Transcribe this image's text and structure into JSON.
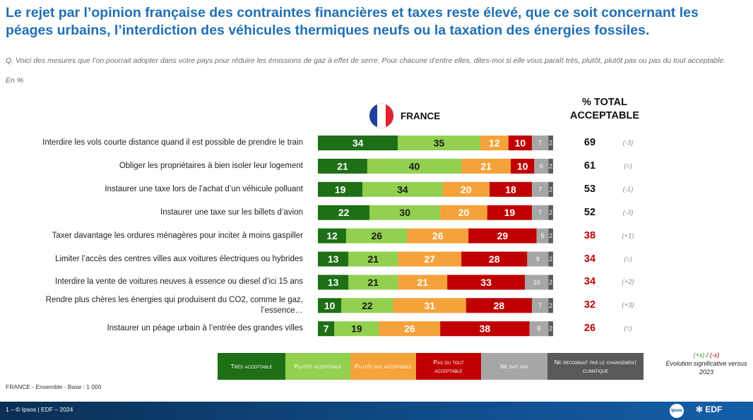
{
  "title": "Le rejet par l’opinion française des contraintes financières et taxes reste élevé, que ce soit concernant les péages urbains, l’interdiction des véhicules thermiques neufs ou la taxation des énergies fossiles.",
  "question": "Q. Voici des mesures que l’on pourrait adopter dans votre pays pour réduire les émissions de gaz à effet de serre. Pour chacune d’entre elles, dites-moi si elle vous paraît très, plutôt, plutôt pas ou pas du tout acceptable.",
  "unit": "En %",
  "country": "FRANCE",
  "total_header": "% TOTAL ACCEPTABLE",
  "colors": {
    "tres": "#1e6f16",
    "plutot": "#92d050",
    "plutot_pas": "#f4a23a",
    "pas_du_tout": "#c00000",
    "nsp": "#a6a6a6",
    "ne_reconnait": "#595959",
    "total_red": "#c00000",
    "total_black": "#111111"
  },
  "chart_data": {
    "type": "stacked-bar-horizontal",
    "title": "FRANCE",
    "series_names": [
      "Très acceptable",
      "Plutôt acceptable",
      "Plutôt pas acceptable",
      "Pas du tout acceptable",
      "Ne sait pas",
      "Ne reconnait pas le changement climatique"
    ],
    "rows": [
      {
        "label": "Interdire les vols courte distance quand il est possible de prendre le train",
        "values": [
          34,
          35,
          12,
          10,
          7,
          2
        ],
        "total": "69",
        "evolution": "(-3)",
        "total_color": "black"
      },
      {
        "label": "Obliger les propriétaires à bien isoler leur logement",
        "values": [
          21,
          40,
          21,
          10,
          6,
          2
        ],
        "total": "61",
        "evolution": "(=)",
        "total_color": "black"
      },
      {
        "label": "Instaurer une taxe lors de l’achat d’un véhicule polluant",
        "values": [
          19,
          34,
          20,
          18,
          7,
          2
        ],
        "total": "53",
        "evolution": "(-1)",
        "total_color": "black"
      },
      {
        "label": "Instaurer une taxe sur les billets d’avion",
        "values": [
          22,
          30,
          20,
          19,
          7,
          2
        ],
        "total": "52",
        "evolution": "(-3)",
        "total_color": "black"
      },
      {
        "label": "Taxer davantage les ordures ménagères pour inciter à moins gaspiller",
        "values": [
          12,
          26,
          26,
          29,
          5,
          2
        ],
        "total": "38",
        "evolution": "(+1)",
        "total_color": "red"
      },
      {
        "label": "Limiter l’accès des centres villes aux voitures électriques ou hybrides",
        "values": [
          13,
          21,
          27,
          28,
          9,
          2
        ],
        "total": "34",
        "evolution": "(=)",
        "total_color": "red"
      },
      {
        "label": "Interdire la vente de voitures neuves à essence ou diesel d’ici 15 ans",
        "values": [
          13,
          21,
          21,
          33,
          10,
          2
        ],
        "total": "34",
        "evolution": "(+2)",
        "total_color": "red"
      },
      {
        "label": "Rendre plus chères les énergies qui produisent du CO2, comme le gaz, l’essence…",
        "values": [
          10,
          22,
          31,
          28,
          7,
          2
        ],
        "total": "32",
        "evolution": "(+3)",
        "total_color": "red"
      },
      {
        "label": "Instaurer un péage urbain à l’entrée des grandes villes",
        "values": [
          7,
          19,
          26,
          38,
          8,
          2
        ],
        "total": "26",
        "evolution": "(=)",
        "total_color": "red"
      }
    ]
  },
  "legend": {
    "items": [
      {
        "label": "Très acceptable",
        "color": "#1e6f16"
      },
      {
        "label": "Plutôt acceptable",
        "color": "#92d050"
      },
      {
        "label": "Plutôt pas acceptable",
        "color": "#f4a23a"
      },
      {
        "label": "Pas du tout acceptable",
        "color": "#c00000"
      },
      {
        "label": "Ne sait pas",
        "color": "#a6a6a6"
      },
      {
        "label": "Ne reconnait pas le changement climatique",
        "color": "#595959"
      }
    ],
    "note_plus": "(+x)",
    "note_sep": " / ",
    "note_minus": "(-x)",
    "note_text": "Evolution significative versus 2023"
  },
  "base": "FRANCE - Ensemble - Base : 1 000",
  "footer": {
    "text": "1 – © Ipsos | EDF – 2024",
    "ipsos_logo": "Ipsos",
    "edf_logo": "EDF"
  }
}
